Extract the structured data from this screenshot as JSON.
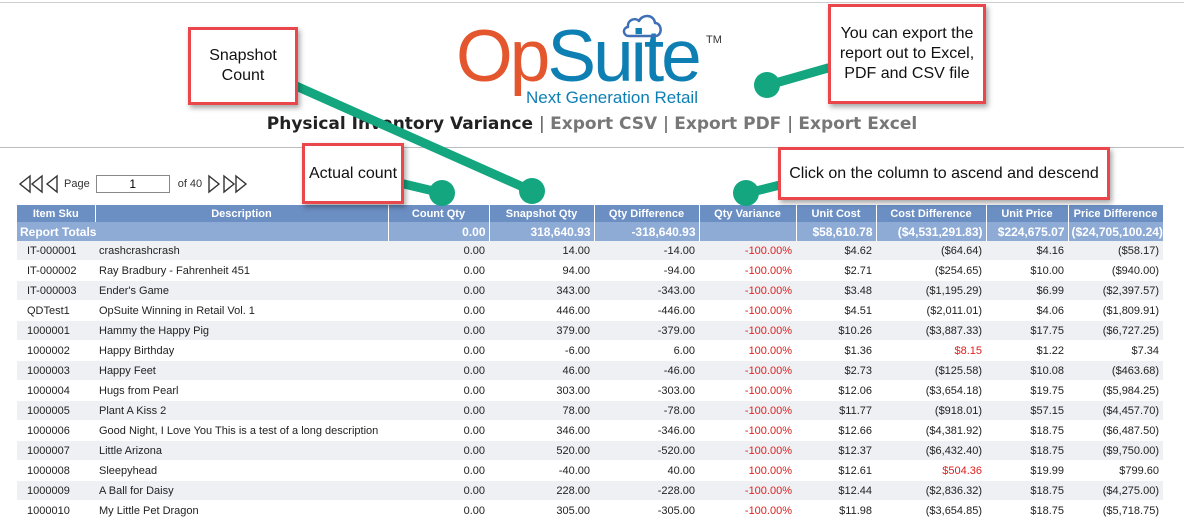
{
  "logo": {
    "op": "Op",
    "suite": "Suite",
    "tm": "TM",
    "tagline": "Next Generation Retail"
  },
  "titlebar": {
    "title": "Physical Inventory Variance",
    "export_csv": "Export CSV",
    "export_pdf": "Export PDF",
    "export_excel": "Export Excel"
  },
  "pager": {
    "page_label": "Page",
    "page_value": "1",
    "of_label": "of 40"
  },
  "table": {
    "headers": {
      "sku": "Item Sku",
      "description": "Description",
      "count_qty": "Count Qty",
      "snapshot_qty": "Snapshot Qty",
      "qty_difference": "Qty Difference",
      "qty_variance": "Qty Variance",
      "unit_cost": "Unit Cost",
      "cost_difference": "Cost Difference",
      "unit_price": "Unit Price",
      "price_difference": "Price Difference"
    },
    "totals": {
      "label": "Report Totals",
      "count_qty": "0.00",
      "snapshot_qty": "318,640.93",
      "qty_difference": "-318,640.93",
      "qty_variance": "",
      "unit_cost": "$58,610.78",
      "cost_difference": "($4,531,291.83)",
      "unit_price": "$224,675.07",
      "price_difference": "($24,705,100.24)"
    },
    "rows": [
      {
        "sku": "IT-000001",
        "description": "crashcrashcrash",
        "count_qty": "0.00",
        "snapshot_qty": "14.00",
        "qty_difference": "-14.00",
        "qty_variance": "-100.00%",
        "unit_cost": "$4.62",
        "cost_difference": "($64.64)",
        "unit_price": "$4.16",
        "price_difference": "($58.17)"
      },
      {
        "sku": "IT-000002",
        "description": "Ray Bradbury - Fahrenheit 451",
        "count_qty": "0.00",
        "snapshot_qty": "94.00",
        "qty_difference": "-94.00",
        "qty_variance": "-100.00%",
        "unit_cost": "$2.71",
        "cost_difference": "($254.65)",
        "unit_price": "$10.00",
        "price_difference": "($940.00)"
      },
      {
        "sku": "IT-000003",
        "description": "Ender's Game",
        "count_qty": "0.00",
        "snapshot_qty": "343.00",
        "qty_difference": "-343.00",
        "qty_variance": "-100.00%",
        "unit_cost": "$3.48",
        "cost_difference": "($1,195.29)",
        "unit_price": "$6.99",
        "price_difference": "($2,397.57)"
      },
      {
        "sku": "QDTest1",
        "description": "OpSuite Winning in Retail Vol. 1",
        "count_qty": "0.00",
        "snapshot_qty": "446.00",
        "qty_difference": "-446.00",
        "qty_variance": "-100.00%",
        "unit_cost": "$4.51",
        "cost_difference": "($2,011.01)",
        "unit_price": "$4.06",
        "price_difference": "($1,809.91)"
      },
      {
        "sku": "1000001",
        "description": "Hammy the Happy Pig",
        "count_qty": "0.00",
        "snapshot_qty": "379.00",
        "qty_difference": "-379.00",
        "qty_variance": "-100.00%",
        "unit_cost": "$10.26",
        "cost_difference": "($3,887.33)",
        "unit_price": "$17.75",
        "price_difference": "($6,727.25)"
      },
      {
        "sku": "1000002",
        "description": "Happy Birthday",
        "count_qty": "0.00",
        "snapshot_qty": "-6.00",
        "qty_difference": "6.00",
        "qty_variance": "100.00%",
        "unit_cost": "$1.36",
        "cost_difference": "$8.15",
        "unit_price": "$1.22",
        "price_difference": "$7.34"
      },
      {
        "sku": "1000003",
        "description": "Happy Feet",
        "count_qty": "0.00",
        "snapshot_qty": "46.00",
        "qty_difference": "-46.00",
        "qty_variance": "-100.00%",
        "unit_cost": "$2.73",
        "cost_difference": "($125.58)",
        "unit_price": "$10.08",
        "price_difference": "($463.68)"
      },
      {
        "sku": "1000004",
        "description": "Hugs from Pearl",
        "count_qty": "0.00",
        "snapshot_qty": "303.00",
        "qty_difference": "-303.00",
        "qty_variance": "-100.00%",
        "unit_cost": "$12.06",
        "cost_difference": "($3,654.18)",
        "unit_price": "$19.75",
        "price_difference": "($5,984.25)"
      },
      {
        "sku": "1000005",
        "description": "Plant A Kiss 2",
        "count_qty": "0.00",
        "snapshot_qty": "78.00",
        "qty_difference": "-78.00",
        "qty_variance": "-100.00%",
        "unit_cost": "$11.77",
        "cost_difference": "($918.01)",
        "unit_price": "$57.15",
        "price_difference": "($4,457.70)"
      },
      {
        "sku": "1000006",
        "description": "Good Night, I Love You This is a test of a long description",
        "count_qty": "0.00",
        "snapshot_qty": "346.00",
        "qty_difference": "-346.00",
        "qty_variance": "-100.00%",
        "unit_cost": "$12.66",
        "cost_difference": "($4,381.92)",
        "unit_price": "$18.75",
        "price_difference": "($6,487.50)"
      },
      {
        "sku": "1000007",
        "description": "Little Arizona",
        "count_qty": "0.00",
        "snapshot_qty": "520.00",
        "qty_difference": "-520.00",
        "qty_variance": "-100.00%",
        "unit_cost": "$12.37",
        "cost_difference": "($6,432.40)",
        "unit_price": "$18.75",
        "price_difference": "($9,750.00)"
      },
      {
        "sku": "1000008",
        "description": "Sleepyhead",
        "count_qty": "0.00",
        "snapshot_qty": "-40.00",
        "qty_difference": "40.00",
        "qty_variance": "100.00%",
        "unit_cost": "$12.61",
        "cost_difference": "$504.36",
        "unit_price": "$19.99",
        "price_difference": "$799.60"
      },
      {
        "sku": "1000009",
        "description": "A Ball for Daisy",
        "count_qty": "0.00",
        "snapshot_qty": "228.00",
        "qty_difference": "-228.00",
        "qty_variance": "-100.00%",
        "unit_cost": "$12.44",
        "cost_difference": "($2,836.32)",
        "unit_price": "$18.75",
        "price_difference": "($4,275.00)"
      },
      {
        "sku": "1000010",
        "description": "My Little Pet Dragon",
        "count_qty": "0.00",
        "snapshot_qty": "305.00",
        "qty_difference": "-305.00",
        "qty_variance": "-100.00%",
        "unit_cost": "$11.98",
        "cost_difference": "($3,654.85)",
        "unit_price": "$18.75",
        "price_difference": "($5,718.75)"
      }
    ]
  },
  "callouts": {
    "snapshot": "Snapshot Count",
    "export": "You can export the report out to Excel, PDF and CSV file",
    "actual": "Actual count",
    "sort": "Click on the column to ascend and descend"
  },
  "colors": {
    "header": "#6b8ec3",
    "totals": "#8eabd6",
    "callout_border": "#e9474b",
    "marker": "#13a67f",
    "negative": "#e02020"
  }
}
